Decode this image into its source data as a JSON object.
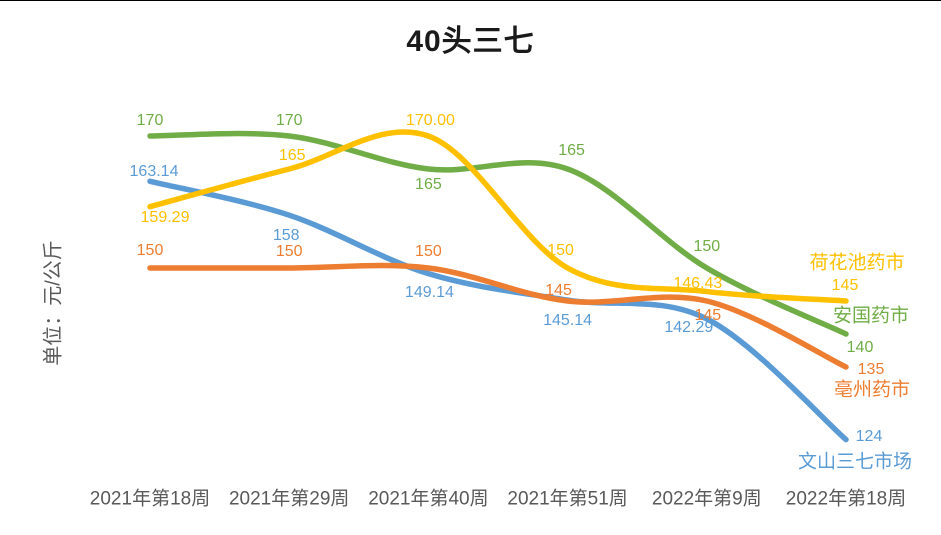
{
  "title": "40头三七",
  "y_axis_label": "单位：元/公斤",
  "chart_data": {
    "type": "line",
    "title": "40头三七",
    "ylabel": "单位：元/公斤",
    "xlabel": "",
    "grid": false,
    "line_style": "smooth",
    "legend_position": "right-end-labels",
    "y_implied_range": [
      120,
      175
    ],
    "categories": [
      "2021年第18周",
      "2021年第29周",
      "2021年第40周",
      "2021年第51周",
      "2022年第9周",
      "2022年第18周"
    ],
    "series": [
      {
        "name": "荷花池药市",
        "color": "#FFC000",
        "values": [
          159.29,
          165,
          170,
          150,
          146.43,
          145
        ],
        "point_labels": [
          "159.29",
          "165",
          "170.00",
          "150",
          "146.43",
          "145"
        ]
      },
      {
        "name": "安国药市",
        "color": "#70AD47",
        "values": [
          170,
          170,
          165,
          165,
          150,
          140
        ],
        "point_labels": [
          "170",
          "170",
          "165",
          "165",
          "150",
          "140"
        ]
      },
      {
        "name": "亳州药市",
        "color": "#ED7D31",
        "values": [
          150,
          150,
          150,
          145,
          145,
          135
        ],
        "point_labels": [
          "150",
          "150",
          "150",
          "145",
          "145",
          "135"
        ]
      },
      {
        "name": "文山三七市场",
        "color": "#5B9BD5",
        "values": [
          163.14,
          158,
          149.14,
          145.14,
          142.29,
          124
        ],
        "point_labels": [
          "163.14",
          "158",
          "149.14",
          "145.14",
          "142.29",
          "124"
        ]
      }
    ]
  }
}
